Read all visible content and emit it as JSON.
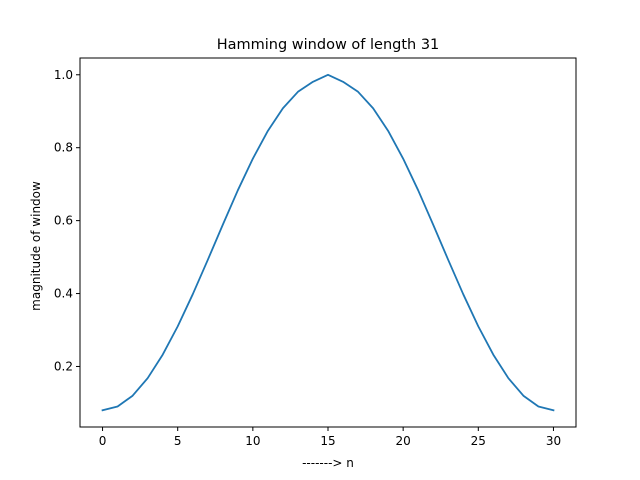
{
  "chart_data": {
    "type": "line",
    "title": "Hamming window of length 31",
    "xlabel": "-------> n",
    "ylabel": "magnitude of window",
    "xlim": [
      -1.5,
      31.5
    ],
    "ylim": [
      0.034,
      1.046
    ],
    "xticks": [
      0,
      5,
      10,
      15,
      20,
      25,
      30
    ],
    "xtick_labels": [
      "0",
      "5",
      "10",
      "15",
      "20",
      "25",
      "30"
    ],
    "yticks": [
      0.2,
      0.4,
      0.6,
      0.8,
      1.0
    ],
    "ytick_labels": [
      "0.2",
      "0.4",
      "0.6",
      "0.8",
      "1.0"
    ],
    "grid": false,
    "series": [
      {
        "color": "#1f77b4",
        "x": [
          0,
          1,
          2,
          3,
          4,
          5,
          6,
          7,
          8,
          9,
          10,
          11,
          12,
          13,
          14,
          15,
          16,
          17,
          18,
          19,
          20,
          21,
          22,
          23,
          24,
          25,
          26,
          27,
          28,
          29,
          30
        ],
        "y": [
          0.08,
          0.0901,
          0.1198,
          0.1679,
          0.2322,
          0.31,
          0.3979,
          0.4922,
          0.5887,
          0.6831,
          0.77,
          0.8462,
          0.9081,
          0.9533,
          0.9808,
          1.0,
          0.9808,
          0.9533,
          0.9081,
          0.8462,
          0.77,
          0.6831,
          0.5887,
          0.4922,
          0.3979,
          0.31,
          0.2322,
          0.1679,
          0.1198,
          0.0901,
          0.08
        ]
      }
    ]
  }
}
